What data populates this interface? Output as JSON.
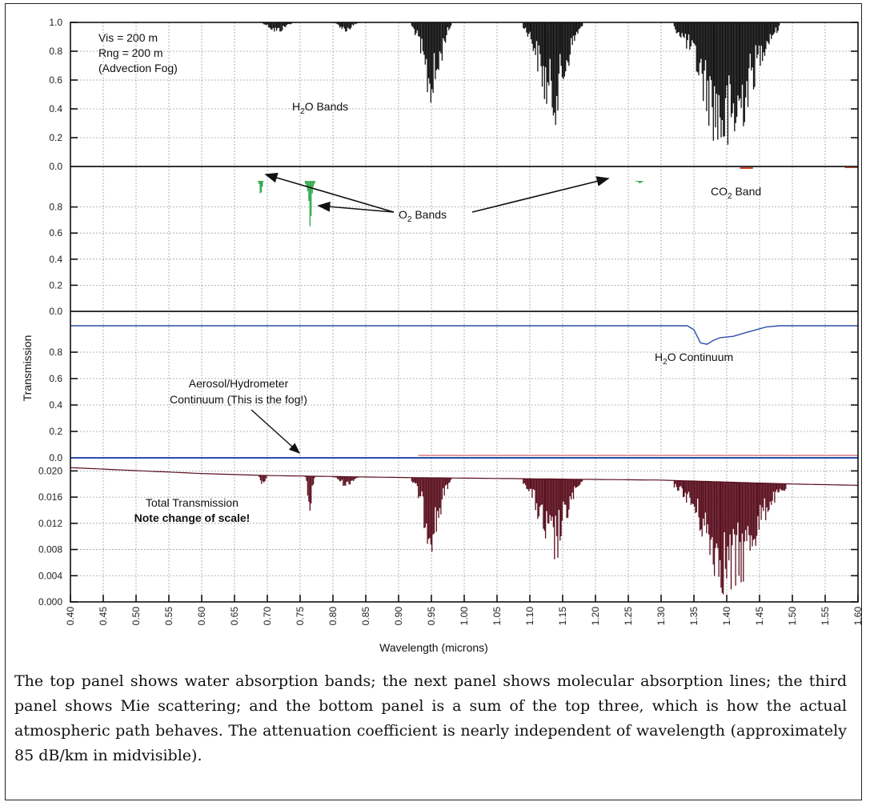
{
  "chart_data": {
    "type": "line",
    "xlabel": "Wavelength (microns)",
    "ylabel": "Transmission",
    "xlim": [
      0.4,
      1.6
    ],
    "x_ticks": [
      "0.40",
      "0.45",
      "0.50",
      "0.55",
      "0.60",
      "0.65",
      "0.70",
      "0.75",
      "0.80",
      "0.85",
      "0.90",
      "0.95",
      "1.00",
      "1.05",
      "1.10",
      "1.15",
      "1.20",
      "1.25",
      "1.30",
      "1.35",
      "1.40",
      "1.45",
      "1.50",
      "1.55",
      "1.60"
    ],
    "grid": true,
    "panels": [
      {
        "id": "h2o_bands",
        "ylim": [
          0.0,
          1.0
        ],
        "y_ticks": [
          "0.0",
          "0.2",
          "0.4",
          "0.6",
          "0.8",
          "1.0"
        ],
        "color": "#111111",
        "style": "spectrum",
        "annotations": [
          "Vis = 200 m",
          "Rng = 200 m",
          "(Advection Fog)"
        ],
        "label": "H2O Bands",
        "bands": [
          {
            "x0": 0.69,
            "x1": 0.74,
            "min": 0.92
          },
          {
            "x0": 0.8,
            "x1": 0.84,
            "min": 0.93
          },
          {
            "x0": 0.92,
            "x1": 0.98,
            "min": 0.38
          },
          {
            "x0": 1.09,
            "x1": 1.18,
            "min": 0.27
          },
          {
            "x0": 1.32,
            "x1": 1.48,
            "min": 0.0
          }
        ]
      },
      {
        "id": "o2_bands",
        "ylim": [
          0.0,
          1.0
        ],
        "y_ticks": [
          "0.0",
          "0.2",
          "0.4",
          "0.6",
          "0.8"
        ],
        "color": "#2ea84a",
        "style": "spectrum",
        "label": "O2 Bands",
        "label2": "CO2 Band",
        "bands": [
          {
            "x0": 0.686,
            "x1": 0.694,
            "min": 0.88
          },
          {
            "x0": 0.758,
            "x1": 0.772,
            "min": 0.63
          },
          {
            "x0": 1.26,
            "x1": 1.275,
            "min": 0.98
          }
        ]
      },
      {
        "id": "h2o_continuum",
        "ylim": [
          0.0,
          1.0
        ],
        "y_ticks": [
          "0.0",
          "0.2",
          "0.4",
          "0.6",
          "0.8"
        ],
        "color": "#2a4fa8",
        "style": "line",
        "label": "H2O Continuum",
        "label2": "Aerosol/Hydrometer",
        "label3": "Continuum (This is the fog!)",
        "points": [
          [
            0.4,
            1.0
          ],
          [
            1.34,
            1.0
          ],
          [
            1.35,
            0.97
          ],
          [
            1.36,
            0.87
          ],
          [
            1.37,
            0.86
          ],
          [
            1.38,
            0.89
          ],
          [
            1.39,
            0.91
          ],
          [
            1.41,
            0.92
          ],
          [
            1.43,
            0.95
          ],
          [
            1.46,
            0.99
          ],
          [
            1.48,
            1.0
          ],
          [
            1.6,
            1.0
          ]
        ]
      },
      {
        "id": "total",
        "ylim": [
          0.0,
          0.022
        ],
        "y_ticks": [
          "0.000",
          "0.004",
          "0.008",
          "0.012",
          "0.016",
          "0.020"
        ],
        "color": "#5a0f1e",
        "style": "spectrum",
        "label": "Total Transmission",
        "label2": "Note change of scale!",
        "baseline": [
          [
            0.4,
            0.0205
          ],
          [
            0.6,
            0.0196
          ],
          [
            0.7,
            0.0193
          ],
          [
            0.9,
            0.019
          ],
          [
            1.0,
            0.0189
          ],
          [
            1.1,
            0.0188
          ],
          [
            1.3,
            0.0186
          ],
          [
            1.5,
            0.018
          ],
          [
            1.6,
            0.0178
          ]
        ],
        "bands": [
          {
            "x0": 0.686,
            "x1": 0.7,
            "min": 0.017
          },
          {
            "x0": 0.758,
            "x1": 0.772,
            "min": 0.0123
          },
          {
            "x0": 0.8,
            "x1": 0.84,
            "min": 0.0175
          },
          {
            "x0": 0.92,
            "x1": 0.98,
            "min": 0.0075
          },
          {
            "x0": 1.09,
            "x1": 1.18,
            "min": 0.005
          },
          {
            "x0": 1.32,
            "x1": 1.49,
            "min": 0.0
          }
        ]
      }
    ]
  },
  "caption": "The top panel shows water absorption bands; the next panel shows molecular absorption lines; the third panel shows Mie scattering; and the bottom panel is a sum of the top three, which is how the actual atmospheric path behaves.  The attenuation coefficient is nearly independent of wavelength (approximately 85 dB/km in midvisible)."
}
